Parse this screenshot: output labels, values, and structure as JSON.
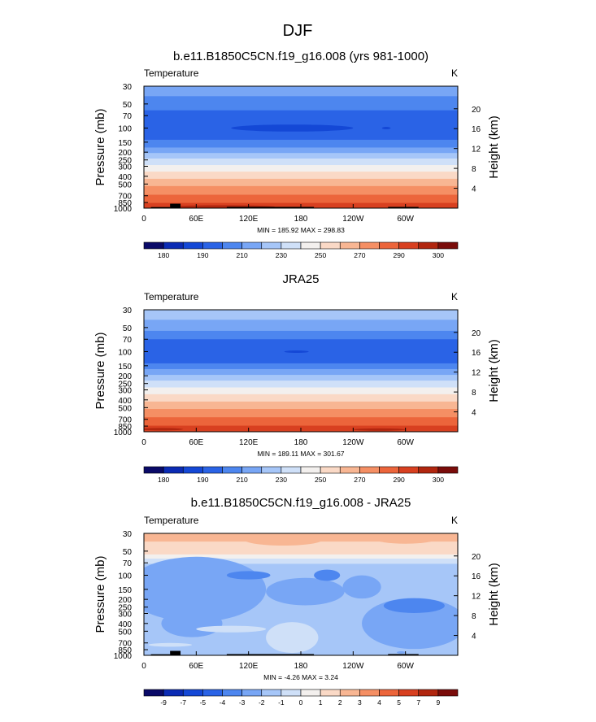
{
  "figure": {
    "title": "DJF"
  },
  "chart_data": [
    {
      "type": "heatmap",
      "title": "b.e11.B1850C5CN.f19_g16.008 (yrs 981-1000)",
      "left_label": "Temperature",
      "units": "K",
      "ylabel": "Pressure (mb)",
      "ylabel_right": "Height (km)",
      "x_ticks": [
        "0",
        "60E",
        "120E",
        "180",
        "120W",
        "60W"
      ],
      "x_tick_values": [
        0,
        60,
        120,
        180,
        240,
        300
      ],
      "xlim": [
        0,
        360
      ],
      "pressure_ticks": [
        "30",
        "50",
        "70",
        "100",
        "150",
        "200",
        "250",
        "300",
        "400",
        "500",
        "700",
        "850",
        "1000"
      ],
      "pressure_tick_values": [
        30,
        50,
        70,
        100,
        150,
        200,
        250,
        300,
        400,
        500,
        700,
        850,
        1000
      ],
      "height_ticks": [
        "20",
        "16",
        "12",
        "8",
        "4"
      ],
      "height_tick_values": [
        20,
        16,
        12,
        8,
        4
      ],
      "ylim": [
        1000,
        30
      ],
      "stats": "MIN = 185.92  MAX = 298.83",
      "min": 185.92,
      "max": 298.83,
      "levels": [
        180,
        185,
        190,
        200,
        210,
        220,
        230,
        240,
        250,
        260,
        270,
        280,
        290,
        295,
        300
      ],
      "level_labels": [
        "180",
        "190",
        "210",
        "230",
        "250",
        "270",
        "290",
        "300"
      ],
      "colors": [
        "#0a0a68",
        "#0b2bb4",
        "#1448d6",
        "#2a63e6",
        "#4d86ef",
        "#78a6f5",
        "#a6c6f8",
        "#cfe0f8",
        "#f3f0ee",
        "#fad9c6",
        "#f8b693",
        "#f58f64",
        "#ec653b",
        "#d84020",
        "#b1260f",
        "#7a0c0a"
      ],
      "bands": [
        {
          "p": [
            30,
            40
          ],
          "value": 215
        },
        {
          "p": [
            40,
            60
          ],
          "value": 205
        },
        {
          "p": [
            60,
            140
          ],
          "value": 195
        },
        {
          "p": [
            140,
            175
          ],
          "value": 205
        },
        {
          "p": [
            175,
            205
          ],
          "value": 215
        },
        {
          "p": [
            205,
            240
          ],
          "value": 225
        },
        {
          "p": [
            240,
            290
          ],
          "value": 235
        },
        {
          "p": [
            290,
            350
          ],
          "value": 245
        },
        {
          "p": [
            350,
            430
          ],
          "value": 255
        },
        {
          "p": [
            430,
            530
          ],
          "value": 265
        },
        {
          "p": [
            530,
            680
          ],
          "value": 275
        },
        {
          "p": [
            680,
            860
          ],
          "value": 285
        },
        {
          "p": [
            860,
            1000
          ],
          "value": 292
        }
      ],
      "features": [
        {
          "lon": 170,
          "p": 100,
          "dlon": 70,
          "dp": 10,
          "value": 187
        },
        {
          "lon": 278,
          "p": 100,
          "dlon": 5,
          "dp": 3,
          "value": 187
        },
        {
          "lon": 90,
          "p": 960,
          "dlon": 60,
          "dp": 40,
          "value": 297
        }
      ],
      "terrain": [
        [
          8,
          30,
          970
        ],
        [
          30,
          42,
          880
        ],
        [
          95,
          195,
          965
        ],
        [
          280,
          315,
          965
        ]
      ]
    },
    {
      "type": "heatmap",
      "title": "JRA25",
      "left_label": "Temperature",
      "units": "K",
      "ylabel": "Pressure (mb)",
      "ylabel_right": "Height (km)",
      "x_ticks": [
        "0",
        "60E",
        "120E",
        "180",
        "120W",
        "60W"
      ],
      "x_tick_values": [
        0,
        60,
        120,
        180,
        240,
        300
      ],
      "xlim": [
        0,
        360
      ],
      "pressure_ticks": [
        "30",
        "50",
        "70",
        "100",
        "150",
        "200",
        "250",
        "300",
        "400",
        "500",
        "700",
        "850",
        "1000"
      ],
      "pressure_tick_values": [
        30,
        50,
        70,
        100,
        150,
        200,
        250,
        300,
        400,
        500,
        700,
        850,
        1000
      ],
      "height_ticks": [
        "20",
        "16",
        "12",
        "8",
        "4"
      ],
      "height_tick_values": [
        20,
        16,
        12,
        8,
        4
      ],
      "ylim": [
        1000,
        30
      ],
      "stats": "MIN = 189.11  MAX = 301.67",
      "min": 189.11,
      "max": 301.67,
      "levels": [
        180,
        185,
        190,
        200,
        210,
        220,
        230,
        240,
        250,
        260,
        270,
        280,
        290,
        295,
        300
      ],
      "level_labels": [
        "180",
        "190",
        "210",
        "230",
        "250",
        "270",
        "290",
        "300"
      ],
      "colors": [
        "#0a0a68",
        "#0b2bb4",
        "#1448d6",
        "#2a63e6",
        "#4d86ef",
        "#78a6f5",
        "#a6c6f8",
        "#cfe0f8",
        "#f3f0ee",
        "#fad9c6",
        "#f8b693",
        "#f58f64",
        "#ec653b",
        "#d84020",
        "#b1260f",
        "#7a0c0a"
      ],
      "bands": [
        {
          "p": [
            30,
            40
          ],
          "value": 225
        },
        {
          "p": [
            40,
            55
          ],
          "value": 215
        },
        {
          "p": [
            55,
            70
          ],
          "value": 205
        },
        {
          "p": [
            70,
            140
          ],
          "value": 195
        },
        {
          "p": [
            140,
            165
          ],
          "value": 205
        },
        {
          "p": [
            165,
            195
          ],
          "value": 215
        },
        {
          "p": [
            195,
            230
          ],
          "value": 225
        },
        {
          "p": [
            230,
            280
          ],
          "value": 235
        },
        {
          "p": [
            280,
            340
          ],
          "value": 245
        },
        {
          "p": [
            340,
            420
          ],
          "value": 255
        },
        {
          "p": [
            420,
            520
          ],
          "value": 265
        },
        {
          "p": [
            520,
            660
          ],
          "value": 275
        },
        {
          "p": [
            660,
            840
          ],
          "value": 285
        },
        {
          "p": [
            840,
            1000
          ],
          "value": 292
        }
      ],
      "features": [
        {
          "lon": 175,
          "p": 100,
          "dlon": 14,
          "dp": 3,
          "value": 187
        },
        {
          "lon": 20,
          "p": 930,
          "dlon": 25,
          "dp": 25,
          "value": 297
        },
        {
          "lon": 270,
          "p": 940,
          "dlon": 30,
          "dp": 25,
          "value": 297
        }
      ],
      "terrain": []
    },
    {
      "type": "heatmap",
      "title": "b.e11.B1850C5CN.f19_g16.008 - JRA25",
      "left_label": "Temperature",
      "units": "K",
      "ylabel": "Pressure (mb)",
      "ylabel_right": "Height (km)",
      "x_ticks": [
        "0",
        "60E",
        "120E",
        "180",
        "120W",
        "60W"
      ],
      "x_tick_values": [
        0,
        60,
        120,
        180,
        240,
        300
      ],
      "xlim": [
        0,
        360
      ],
      "pressure_ticks": [
        "30",
        "50",
        "70",
        "100",
        "150",
        "200",
        "250",
        "300",
        "400",
        "500",
        "700",
        "850",
        "1000"
      ],
      "pressure_tick_values": [
        30,
        50,
        70,
        100,
        150,
        200,
        250,
        300,
        400,
        500,
        700,
        850,
        1000
      ],
      "height_ticks": [
        "20",
        "16",
        "12",
        "8",
        "4"
      ],
      "height_tick_values": [
        20,
        16,
        12,
        8,
        4
      ],
      "ylim": [
        1000,
        30
      ],
      "stats": "MIN = -4.26  MAX =  3.24",
      "min": -4.26,
      "max": 3.24,
      "levels": [
        -9,
        -7,
        -5,
        -4,
        -3,
        -2,
        -1,
        0,
        1,
        2,
        3,
        4,
        5,
        7,
        9
      ],
      "level_labels": [
        "-9",
        "-7",
        "-5",
        "-4",
        "-3",
        "-2",
        "-1",
        "0",
        "1",
        "2",
        "3",
        "4",
        "5",
        "7",
        "9"
      ],
      "colors": [
        "#0a0a68",
        "#0b2bb4",
        "#1448d6",
        "#2a63e6",
        "#4d86ef",
        "#78a6f5",
        "#a6c6f8",
        "#cfe0f8",
        "#f3f0ee",
        "#fad9c6",
        "#f8b693",
        "#f58f64",
        "#ec653b",
        "#d84020",
        "#b1260f",
        "#7a0c0a"
      ],
      "bands": [
        {
          "p": [
            30,
            38
          ],
          "value": 2.5
        },
        {
          "p": [
            38,
            55
          ],
          "value": 1.5
        },
        {
          "p": [
            55,
            62
          ],
          "value": 0.5
        },
        {
          "p": [
            62,
            72
          ],
          "value": -0.5
        },
        {
          "p": [
            72,
            1000
          ],
          "value": -1.5
        }
      ],
      "features": [
        {
          "lon": 160,
          "p": 36,
          "dlon": 45,
          "dp": 6,
          "value": 2.5
        },
        {
          "lon": 300,
          "p": 35,
          "dlon": 35,
          "dp": 5,
          "value": 2.5
        },
        {
          "lon": 60,
          "p": 150,
          "dlon": 80,
          "dp": 110,
          "value": -2.5
        },
        {
          "lon": 310,
          "p": 400,
          "dlon": 60,
          "dp": 250,
          "value": -2.5
        },
        {
          "lon": 185,
          "p": 160,
          "dlon": 45,
          "dp": 60,
          "value": -2.5
        },
        {
          "lon": 250,
          "p": 140,
          "dlon": 22,
          "dp": 45,
          "value": -2.5
        },
        {
          "lon": 55,
          "p": 400,
          "dlon": 35,
          "dp": 150,
          "value": -2.5
        },
        {
          "lon": 120,
          "p": 100,
          "dlon": 25,
          "dp": 12,
          "value": -3.5
        },
        {
          "lon": 210,
          "p": 100,
          "dlon": 15,
          "dp": 16,
          "value": -3.5
        },
        {
          "lon": 310,
          "p": 240,
          "dlon": 35,
          "dp": 50,
          "value": -3.5
        },
        {
          "lon": 100,
          "p": 470,
          "dlon": 40,
          "dp": 45,
          "value": -0.5
        },
        {
          "lon": 30,
          "p": 740,
          "dlon": 25,
          "dp": 40,
          "value": -0.5
        },
        {
          "lon": 170,
          "p": 600,
          "dlon": 30,
          "dp": 250,
          "value": -0.5
        },
        {
          "lon": 295,
          "p": 920,
          "dlon": 5,
          "dp": 25,
          "value": -2.5
        }
      ],
      "terrain": [
        [
          8,
          30,
          970
        ],
        [
          30,
          42,
          880
        ],
        [
          95,
          195,
          965
        ],
        [
          280,
          315,
          965
        ]
      ]
    }
  ]
}
